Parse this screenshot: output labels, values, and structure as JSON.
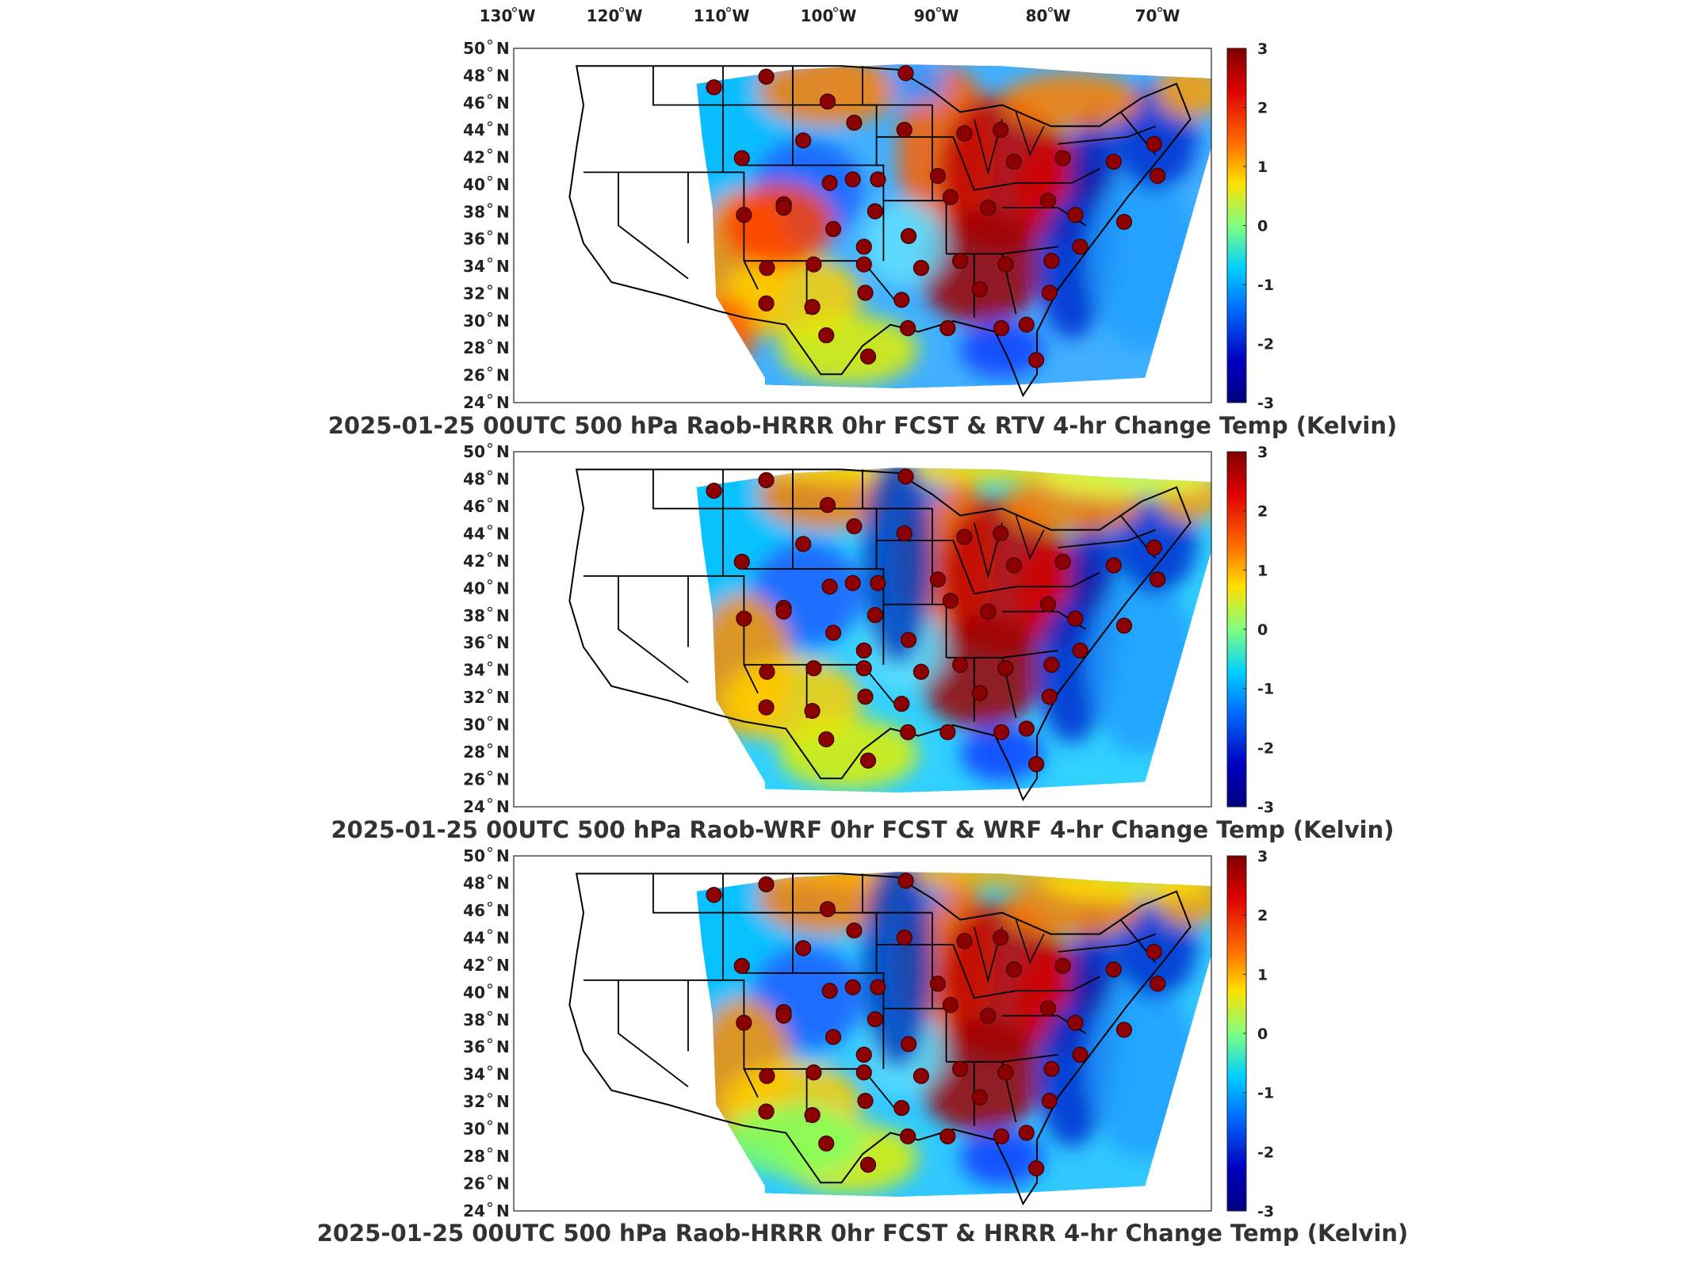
{
  "longitude_labels": [
    {
      "deg": "130",
      "dir": "W"
    },
    {
      "deg": "120",
      "dir": "W"
    },
    {
      "deg": "110",
      "dir": "W"
    },
    {
      "deg": "100",
      "dir": "W"
    },
    {
      "deg": "90",
      "dir": "W"
    },
    {
      "deg": "80",
      "dir": "W"
    },
    {
      "deg": "70",
      "dir": "W"
    }
  ],
  "latitude_labels": [
    {
      "deg": "50",
      "dir": "N"
    },
    {
      "deg": "48",
      "dir": "N"
    },
    {
      "deg": "46",
      "dir": "N"
    },
    {
      "deg": "44",
      "dir": "N"
    },
    {
      "deg": "42",
      "dir": "N"
    },
    {
      "deg": "40",
      "dir": "N"
    },
    {
      "deg": "38",
      "dir": "N"
    },
    {
      "deg": "36",
      "dir": "N"
    },
    {
      "deg": "34",
      "dir": "N"
    },
    {
      "deg": "32",
      "dir": "N"
    },
    {
      "deg": "30",
      "dir": "N"
    },
    {
      "deg": "28",
      "dir": "N"
    },
    {
      "deg": "26",
      "dir": "N"
    },
    {
      "deg": "24",
      "dir": "N"
    }
  ],
  "colorbar": {
    "ticks": [
      "3",
      "2",
      "1",
      "0",
      "-1",
      "-2",
      "-3"
    ],
    "colors": [
      "#7f0000",
      "#e00000",
      "#ff7000",
      "#ffe000",
      "#80ff80",
      "#00d0ff",
      "#0070ff",
      "#0000c0",
      "#00007f"
    ]
  },
  "panels": [
    {
      "caption": "2025-01-25 00UTC 500 hPa Raob-HRRR 0hr FCST & RTV 4-hr Change Temp (Kelvin)"
    },
    {
      "caption": "2025-01-25 00UTC 500 hPa Raob-WRF 0hr FCST & WRF 4-hr Change Temp (Kelvin)"
    },
    {
      "caption": "2025-01-25 00UTC 500 hPa Raob-HRRR 0hr FCST & HRRR 4-hr Change Temp (Kelvin)"
    }
  ],
  "raob_station_color": "#8b0000"
}
